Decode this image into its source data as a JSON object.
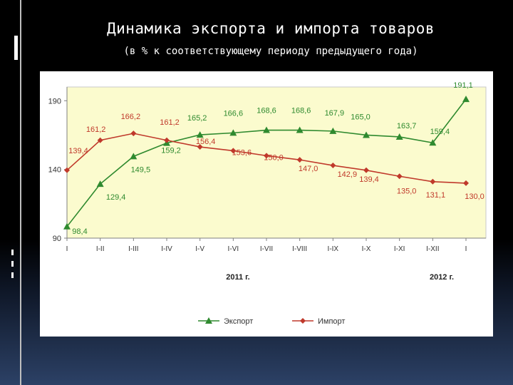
{
  "slide": {
    "title": "Динамика экспорта и импорта товаров",
    "subtitle": "(в % к соответствующему периоду предыдущего года)"
  },
  "chart_data": {
    "type": "line",
    "x": [
      "I",
      "I-II",
      "I-III",
      "I-IV",
      "I-V",
      "I-VI",
      "I-VII",
      "I-VIII",
      "I-IX",
      "I-X",
      "I-XI",
      "I-XII",
      "I"
    ],
    "year_labels": [
      {
        "label": "2011 г.",
        "under": "I-VII"
      },
      {
        "label": "2012 г.",
        "under": "I"
      }
    ],
    "ylim": [
      90,
      200
    ],
    "yticks": [
      90,
      140,
      190
    ],
    "series": [
      {
        "name": "Экспорт",
        "color": "#2f8a2f",
        "marker": "triangle",
        "values": [
          98.4,
          129.4,
          149.5,
          159.2,
          165.2,
          166.6,
          168.6,
          168.6,
          167.9,
          165.0,
          163.7,
          159.4,
          191.1
        ],
        "labels": [
          "98,4",
          "129,4",
          "149,5",
          "159,2",
          "165,2",
          "166,6",
          "168,6",
          "168,6",
          "167,9",
          "165,0",
          "163,7",
          "159,4",
          "191,1"
        ]
      },
      {
        "name": "Импорт",
        "color": "#c0392b",
        "marker": "diamond",
        "values": [
          139.4,
          161.2,
          166.2,
          161.2,
          156.4,
          153.6,
          150.0,
          147.0,
          142.9,
          139.4,
          135.0,
          131.1,
          130.0
        ],
        "labels": [
          "139,4",
          "161,2",
          "166,2",
          "161,2",
          "156,4",
          "153,6",
          "150,0",
          "147,0",
          "142,9",
          "139,4",
          "135,0",
          "131,1",
          "130,0"
        ]
      }
    ],
    "grid": false,
    "legend": "bottom"
  }
}
